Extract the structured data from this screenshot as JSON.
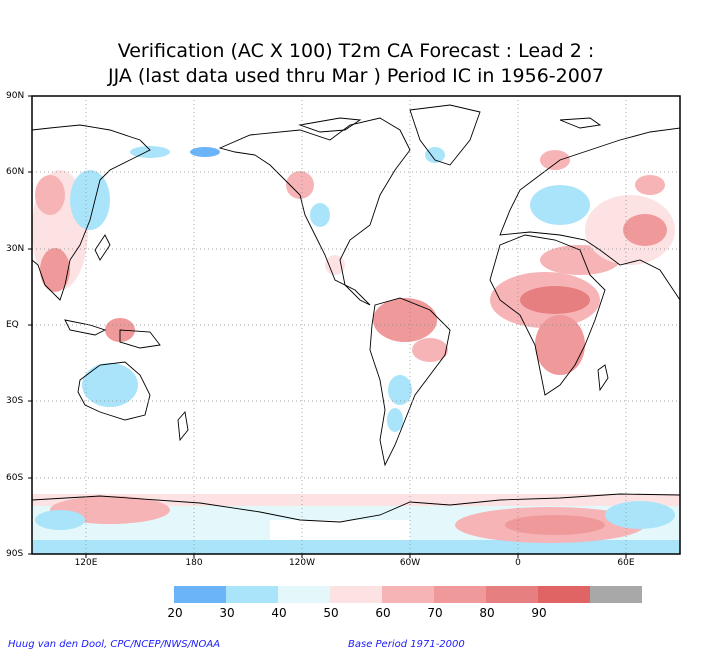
{
  "title_line1": "Verification (AC X 100) T2m CA Forecast : Lead 2 :",
  "title_line2": "JJA (last data used thru Mar ) Period IC in 1956-2007",
  "lat_labels": [
    "90N",
    "60N",
    "30N",
    "EQ",
    "30S",
    "60S",
    "90S"
  ],
  "lon_labels": [
    "120E",
    "180",
    "120W",
    "60W",
    "0",
    "60E"
  ],
  "legend": {
    "values": [
      "20",
      "30",
      "40",
      "50",
      "60",
      "70",
      "80",
      "90"
    ],
    "colors": [
      "#6cb4f8",
      "#a9e4fa",
      "#e4f8fb",
      "#fde2e3",
      "#f6b4b6",
      "#f0999b",
      "#e67f7f",
      "#e06464",
      "#a8a8a8"
    ]
  },
  "credit_left": "Huug van den Dool, CPC/NCEP/NWS/NOAA",
  "credit_right": "Base Period 1971-2000"
}
